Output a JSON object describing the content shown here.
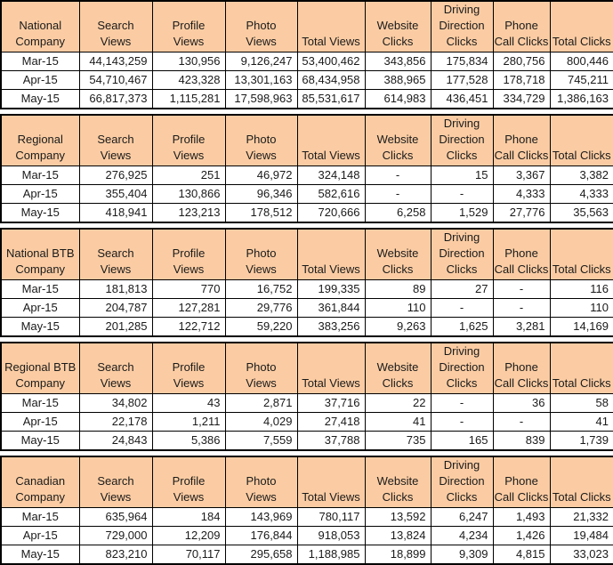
{
  "styles": {
    "header_bg": "#FBCCA3",
    "border_color": "#000000",
    "text_color": "#1A1A1A",
    "cell_bg": "#FFFFFF"
  },
  "table": {
    "column_headers": [
      [
        "Search",
        "Views"
      ],
      [
        "Profile",
        "Views"
      ],
      [
        "Photo",
        "Views"
      ],
      [
        "Total Views"
      ],
      [
        "Website",
        "Clicks"
      ],
      [
        "Driving",
        "Direction",
        "Clicks"
      ],
      [
        "Phone",
        "Call Clicks"
      ],
      [
        "Total Clicks"
      ]
    ],
    "sections": [
      {
        "company": [
          "National",
          "Company"
        ],
        "rows": [
          {
            "month": "Mar-15",
            "values": [
              "44,143,259",
              "130,956",
              "9,126,247",
              "53,400,462",
              "343,856",
              "175,834",
              "280,756",
              "800,446"
            ]
          },
          {
            "month": "Apr-15",
            "values": [
              "54,710,467",
              "423,328",
              "13,301,163",
              "68,434,958",
              "388,965",
              "177,528",
              "178,718",
              "745,211"
            ]
          },
          {
            "month": "May-15",
            "values": [
              "66,817,373",
              "1,115,281",
              "17,598,963",
              "85,531,617",
              "614,983",
              "436,451",
              "334,729",
              "1,386,163"
            ]
          }
        ]
      },
      {
        "company": [
          "Regional",
          "Company"
        ],
        "rows": [
          {
            "month": "Mar-15",
            "values": [
              "276,925",
              "251",
              "46,972",
              "324,148",
              "-",
              "15",
              "3,367",
              "3,382"
            ]
          },
          {
            "month": "Apr-15",
            "values": [
              "355,404",
              "130,866",
              "96,346",
              "582,616",
              "-",
              "-",
              "4,333",
              "4,333"
            ]
          },
          {
            "month": "May-15",
            "values": [
              "418,941",
              "123,213",
              "178,512",
              "720,666",
              "6,258",
              "1,529",
              "27,776",
              "35,563"
            ]
          }
        ]
      },
      {
        "company": [
          "National BTB",
          "Company"
        ],
        "rows": [
          {
            "month": "Mar-15",
            "values": [
              "181,813",
              "770",
              "16,752",
              "199,335",
              "89",
              "27",
              "-",
              "116"
            ]
          },
          {
            "month": "Apr-15",
            "values": [
              "204,787",
              "127,281",
              "29,776",
              "361,844",
              "110",
              "-",
              "-",
              "110"
            ]
          },
          {
            "month": "May-15",
            "values": [
              "201,285",
              "122,712",
              "59,220",
              "383,256",
              "9,263",
              "1,625",
              "3,281",
              "14,169"
            ]
          }
        ]
      },
      {
        "company": [
          "Regional BTB",
          "Company"
        ],
        "rows": [
          {
            "month": "Mar-15",
            "values": [
              "34,802",
              "43",
              "2,871",
              "37,716",
              "22",
              "-",
              "36",
              "58"
            ]
          },
          {
            "month": "Apr-15",
            "values": [
              "22,178",
              "1,211",
              "4,029",
              "27,418",
              "41",
              "-",
              "-",
              "41"
            ]
          },
          {
            "month": "May-15",
            "values": [
              "24,843",
              "5,386",
              "7,559",
              "37,788",
              "735",
              "165",
              "839",
              "1,739"
            ]
          }
        ]
      },
      {
        "company": [
          "Canadian",
          "Company"
        ],
        "rows": [
          {
            "month": "Mar-15",
            "values": [
              "635,964",
              "184",
              "143,969",
              "780,117",
              "13,592",
              "6,247",
              "1,493",
              "21,332"
            ]
          },
          {
            "month": "Apr-15",
            "values": [
              "729,000",
              "12,209",
              "176,844",
              "918,053",
              "13,824",
              "4,234",
              "1,426",
              "19,484"
            ]
          },
          {
            "month": "May-15",
            "values": [
              "823,210",
              "70,117",
              "295,658",
              "1,188,985",
              "18,899",
              "9,309",
              "4,815",
              "33,023"
            ]
          }
        ]
      }
    ]
  }
}
